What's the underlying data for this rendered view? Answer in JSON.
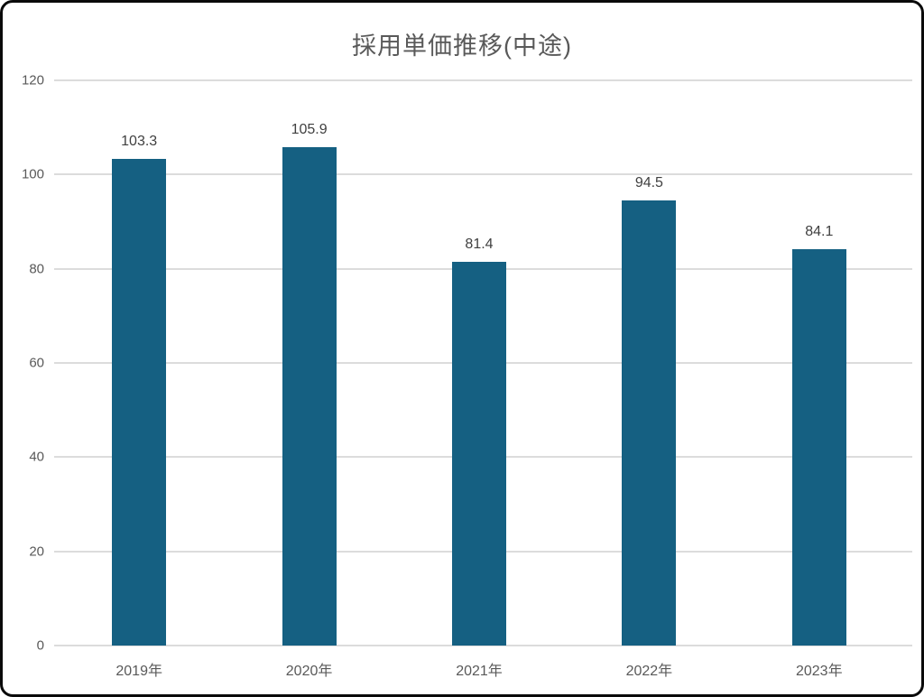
{
  "window": {
    "background_color": "#ffffff",
    "border_color": "#0a0a0a"
  },
  "chart_data": {
    "type": "bar",
    "title": "採用単価推移(中途)",
    "categories": [
      "2019年",
      "2020年",
      "2021年",
      "2022年",
      "2023年"
    ],
    "values": [
      103.3,
      105.9,
      81.4,
      94.5,
      84.1
    ],
    "data_labels": [
      "103.3",
      "105.9",
      "81.4",
      "94.5",
      "84.1"
    ],
    "xlabel": "",
    "ylabel": "",
    "ylim": [
      0,
      120
    ],
    "yticks": [
      0,
      20,
      40,
      60,
      80,
      100,
      120
    ],
    "grid": true,
    "legend_position": "none",
    "bar_color": "#156082",
    "gridline_color": "#dcdcdc",
    "title_color": "#595959",
    "axis_label_color": "#595959",
    "data_label_color": "#404040"
  }
}
